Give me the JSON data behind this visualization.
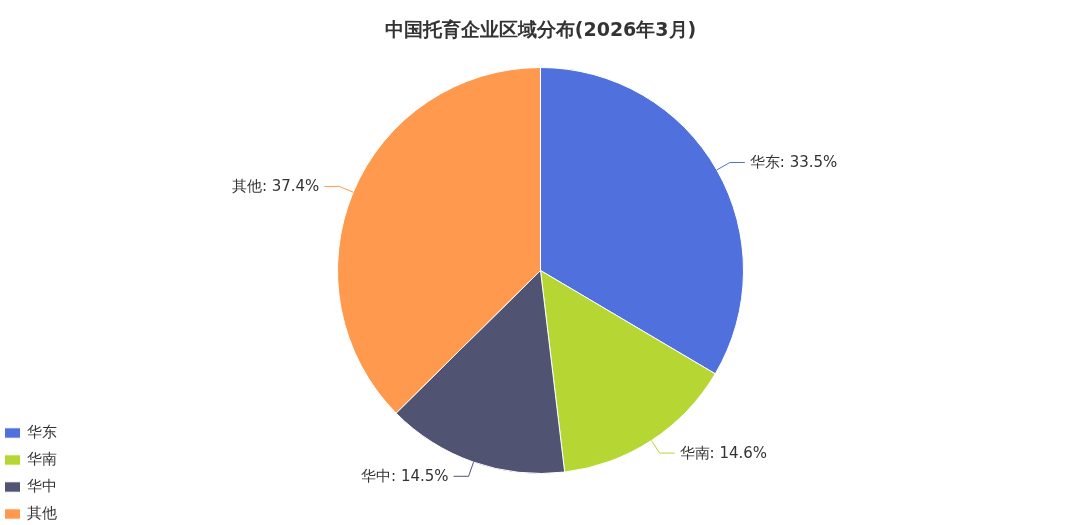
{
  "chart_data": {
    "type": "pie",
    "title": "中国托育企业区域分布(2026年3月)",
    "categories": [
      "华东",
      "华南",
      "华中",
      "其他"
    ],
    "values": [
      33.5,
      14.6,
      14.5,
      37.4
    ],
    "colors": [
      "#5070dd",
      "#b6d634",
      "#505372",
      "#ff994d"
    ],
    "value_labels": [
      "华东: 33.5%",
      "华南: 14.6%",
      "华中: 14.5%",
      "其他: 37.4%"
    ],
    "legend": "bottom left"
  }
}
